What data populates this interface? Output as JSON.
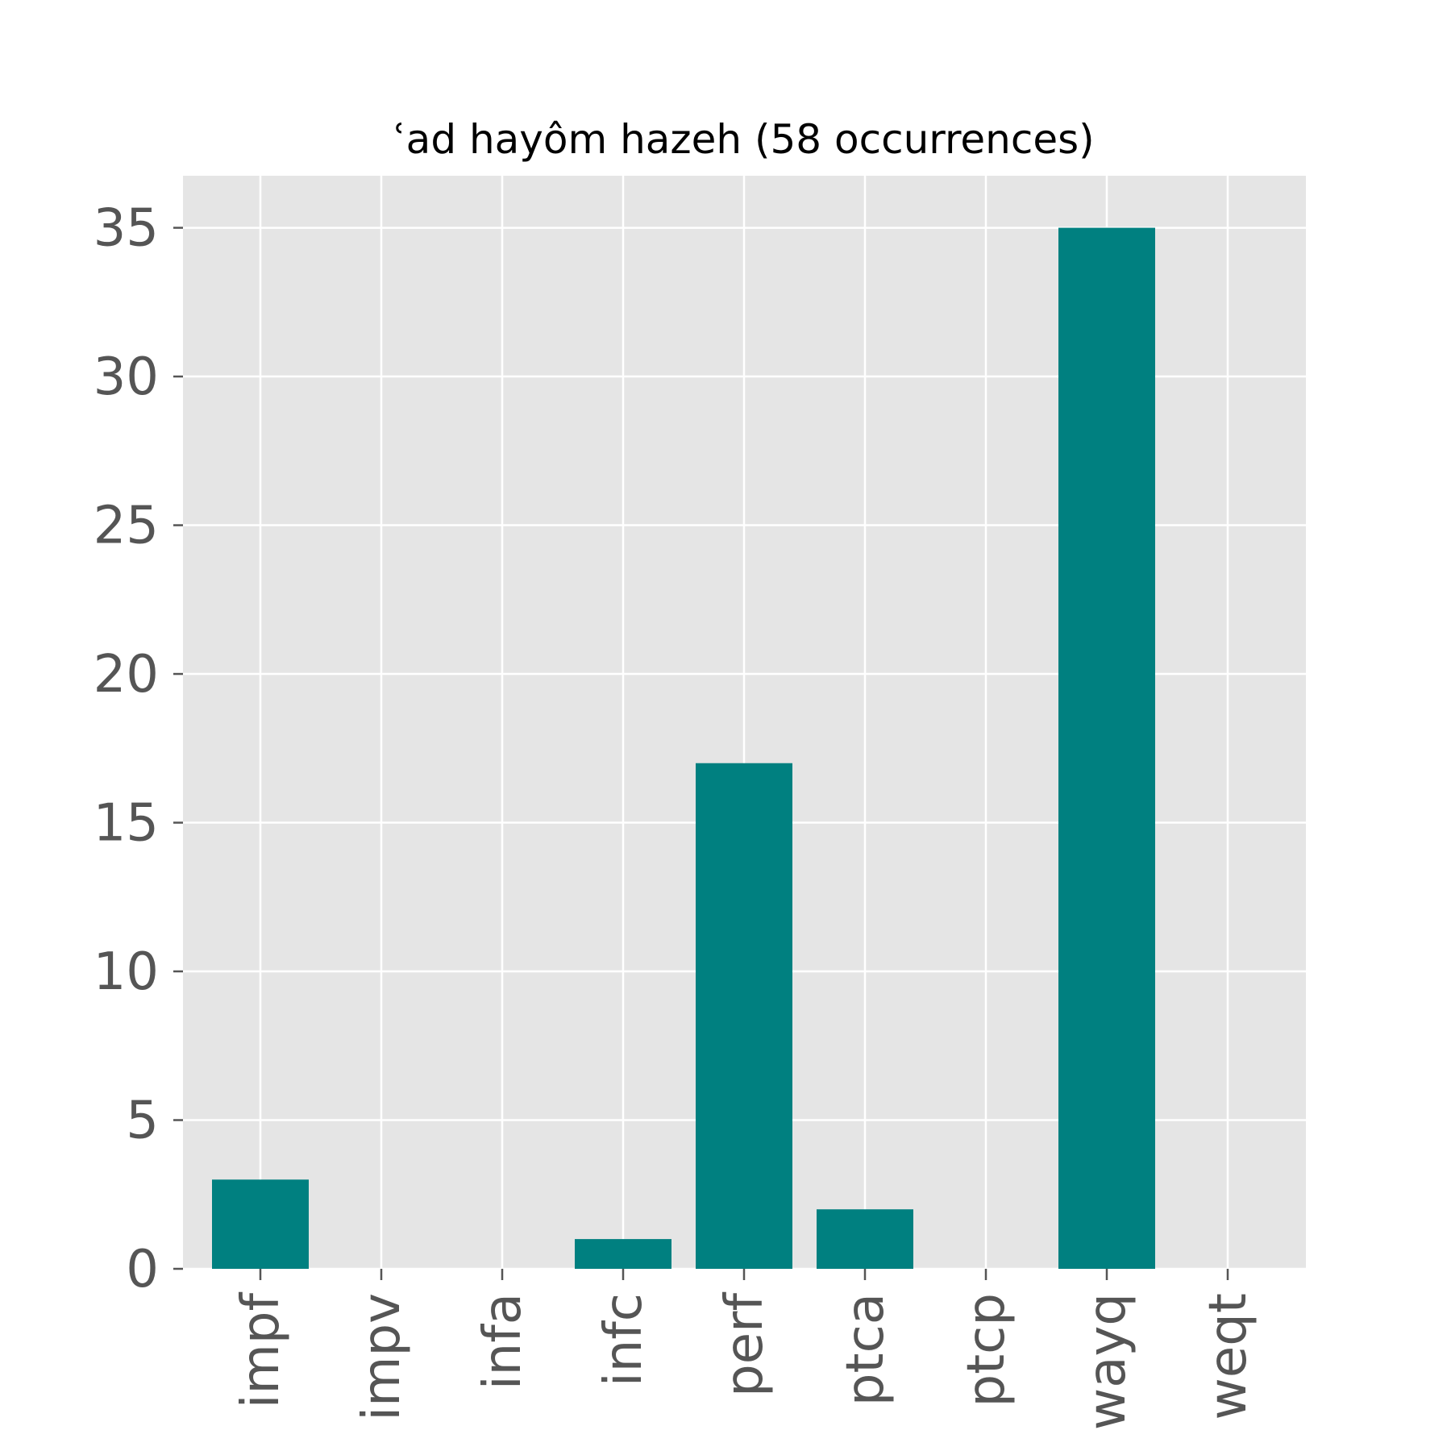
{
  "chart_data": {
    "type": "bar",
    "title": "ʿad hayôm hazeh (58 occurrences)",
    "xlabel": "",
    "ylabel": "",
    "categories": [
      "impf",
      "impv",
      "infa",
      "infc",
      "perf",
      "ptca",
      "ptcp",
      "wayq",
      "weqt"
    ],
    "values": [
      3,
      0,
      0,
      1,
      17,
      2,
      0,
      35,
      0
    ],
    "ylim": [
      0,
      36.75
    ],
    "yticks": [
      0,
      5,
      10,
      15,
      20,
      25,
      30,
      35
    ],
    "grid": true,
    "bar_color": "#008080",
    "background_color": "#e5e5e5",
    "grid_color": "#ffffff"
  }
}
